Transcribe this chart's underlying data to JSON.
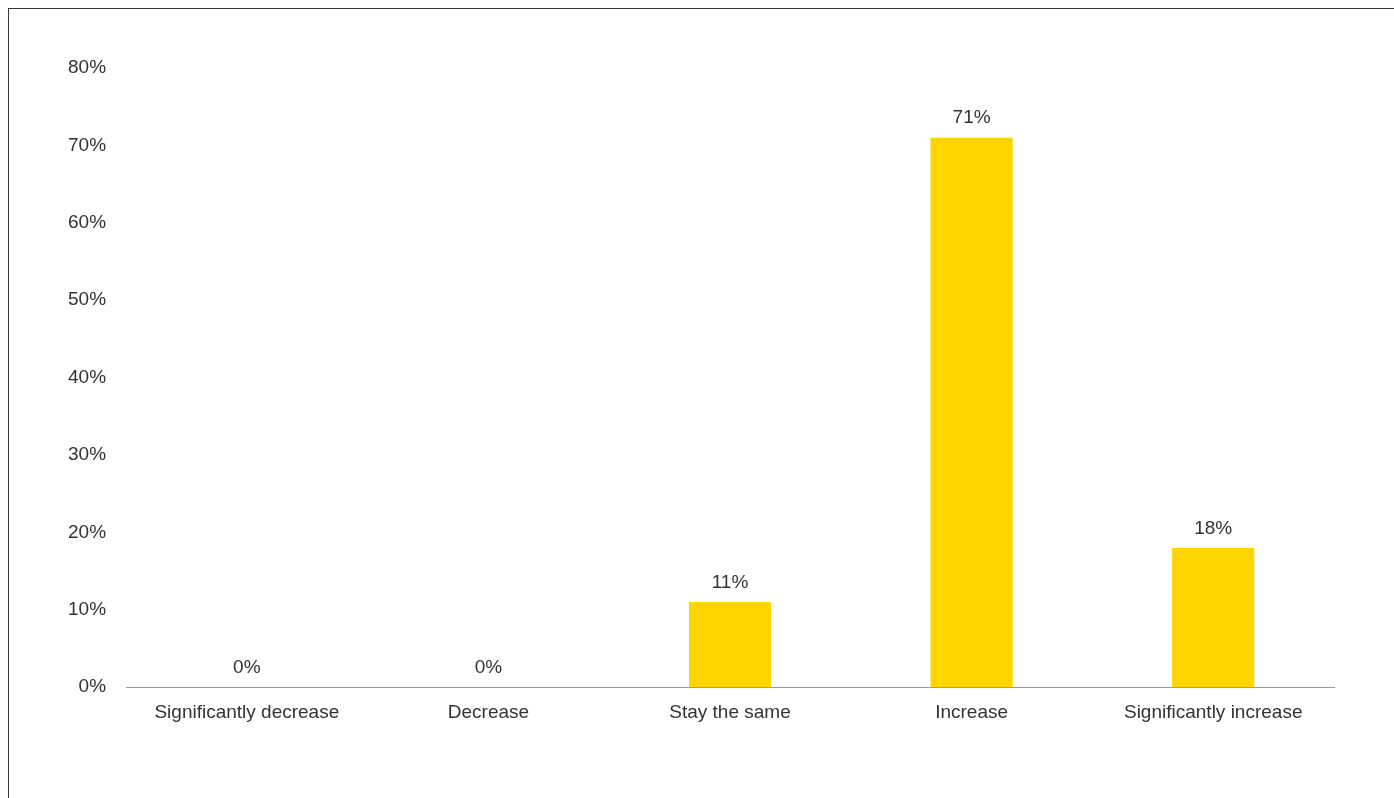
{
  "chart_data": {
    "type": "bar",
    "categories": [
      "Significantly decrease",
      "Decrease",
      "Stay the same",
      "Increase",
      "Significantly increase"
    ],
    "values": [
      0,
      0,
      11,
      71,
      18
    ],
    "value_labels": [
      "0%",
      "0%",
      "11%",
      "71%",
      "18%"
    ],
    "color": "#ffd500",
    "ylim": [
      0,
      80
    ],
    "yticks": [
      {
        "value": 0,
        "label": "0%"
      },
      {
        "value": 10,
        "label": "10%"
      },
      {
        "value": 20,
        "label": "20%"
      },
      {
        "value": 30,
        "label": "30%"
      },
      {
        "value": 40,
        "label": "40%"
      },
      {
        "value": 50,
        "label": "50%"
      },
      {
        "value": 60,
        "label": "60%"
      },
      {
        "value": 70,
        "label": "70%"
      },
      {
        "value": 80,
        "label": "80%"
      }
    ],
    "grid": false,
    "legend": false
  }
}
